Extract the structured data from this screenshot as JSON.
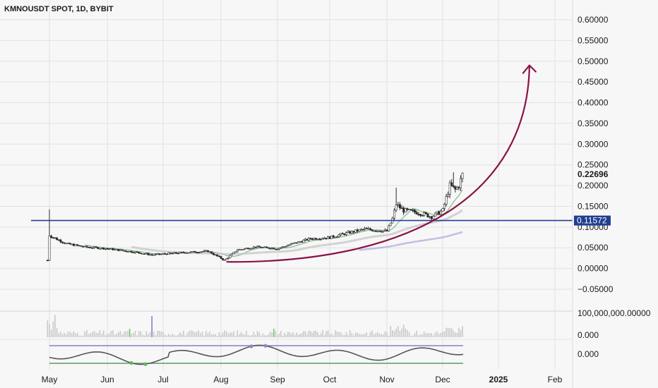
{
  "title": "KMNOUSDT SPOT, 1D, BYBIT",
  "colors": {
    "support_line": "#1f3f8f",
    "curve": "#8b1247",
    "grid": "#e2e2e2",
    "candle": "#2b2b2b",
    "ma_green": "#7fbf8a",
    "ma_grey": "#c8c8c8",
    "ma_purple": "#b8aee0",
    "volume_grey": "#c9c9c9",
    "volume_green": "#6fbf73",
    "volume_purple": "#8e7cc3",
    "osc_band_top": "#8e7cc3",
    "osc_band_bottom": "#5a9a6a",
    "osc_line": "#555555",
    "osc_dot_purple": "#9b7fd1",
    "osc_dot_green": "#5cb85c"
  },
  "chart_data": {
    "type": "candlestick",
    "symbol": "KMNOUSDT SPOT",
    "interval": "1D",
    "exchange": "BYBIT",
    "y_axis": {
      "ticks": [
        "0.60000",
        "0.55000",
        "0.50000",
        "0.45000",
        "0.40000",
        "0.35000",
        "0.30000",
        "0.25000",
        "0.20000",
        "0.15000",
        "0.10000",
        "0.05000",
        "0.00000",
        "−0.05000"
      ],
      "range": [
        -0.075,
        0.64
      ]
    },
    "x_axis": {
      "labels": [
        "May",
        "Jun",
        "Jul",
        "Aug",
        "Sep",
        "Oct",
        "Nov",
        "Dec",
        "2025",
        "Feb"
      ],
      "bold_labels": [
        "2025"
      ]
    },
    "last_price": "0.22696",
    "horizontal_level": {
      "value": 0.11572,
      "label": "0.11572"
    },
    "price_series": {
      "x": [
        "2024-04-30",
        "2024-05-01",
        "2024-05-03",
        "2024-05-10",
        "2024-05-20",
        "2024-06-01",
        "2024-06-15",
        "2024-06-25",
        "2024-07-10",
        "2024-07-25",
        "2024-08-03",
        "2024-08-10",
        "2024-08-20",
        "2024-09-01",
        "2024-09-10",
        "2024-09-20",
        "2024-10-01",
        "2024-10-10",
        "2024-10-20",
        "2024-11-01",
        "2024-11-04",
        "2024-11-06",
        "2024-11-10",
        "2024-11-18",
        "2024-11-25",
        "2024-12-01",
        "2024-12-05",
        "2024-12-08",
        "2024-12-10",
        "2024-12-12"
      ],
      "close": [
        0.02,
        0.08,
        0.075,
        0.06,
        0.052,
        0.048,
        0.04,
        0.033,
        0.038,
        0.042,
        0.02,
        0.045,
        0.052,
        0.048,
        0.06,
        0.072,
        0.075,
        0.085,
        0.095,
        0.09,
        0.12,
        0.155,
        0.14,
        0.135,
        0.125,
        0.14,
        0.2,
        0.19,
        0.2,
        0.22696
      ],
      "high_extremes": [
        {
          "x": "2024-05-01",
          "high": 0.143
        },
        {
          "x": "2024-11-06",
          "high": 0.195
        },
        {
          "x": "2024-12-07",
          "high": 0.232
        }
      ]
    },
    "volume": {
      "axis_label": "100,000,000.00000",
      "highlights": [
        {
          "x": "2024-06-25",
          "color": "purple"
        },
        {
          "x": "2024-06-13",
          "color": "green"
        },
        {
          "x": "2024-08-30",
          "color": "green"
        }
      ]
    },
    "oscillator": {
      "ticks": [
        "0.000",
        "0.000"
      ]
    },
    "annotations": {
      "curve": {
        "type": "parabolic-arrow",
        "start": {
          "x": "2024-08-04",
          "y": 0.016
        },
        "end": {
          "x": "2025-01-18",
          "y": 0.49
        }
      }
    }
  }
}
